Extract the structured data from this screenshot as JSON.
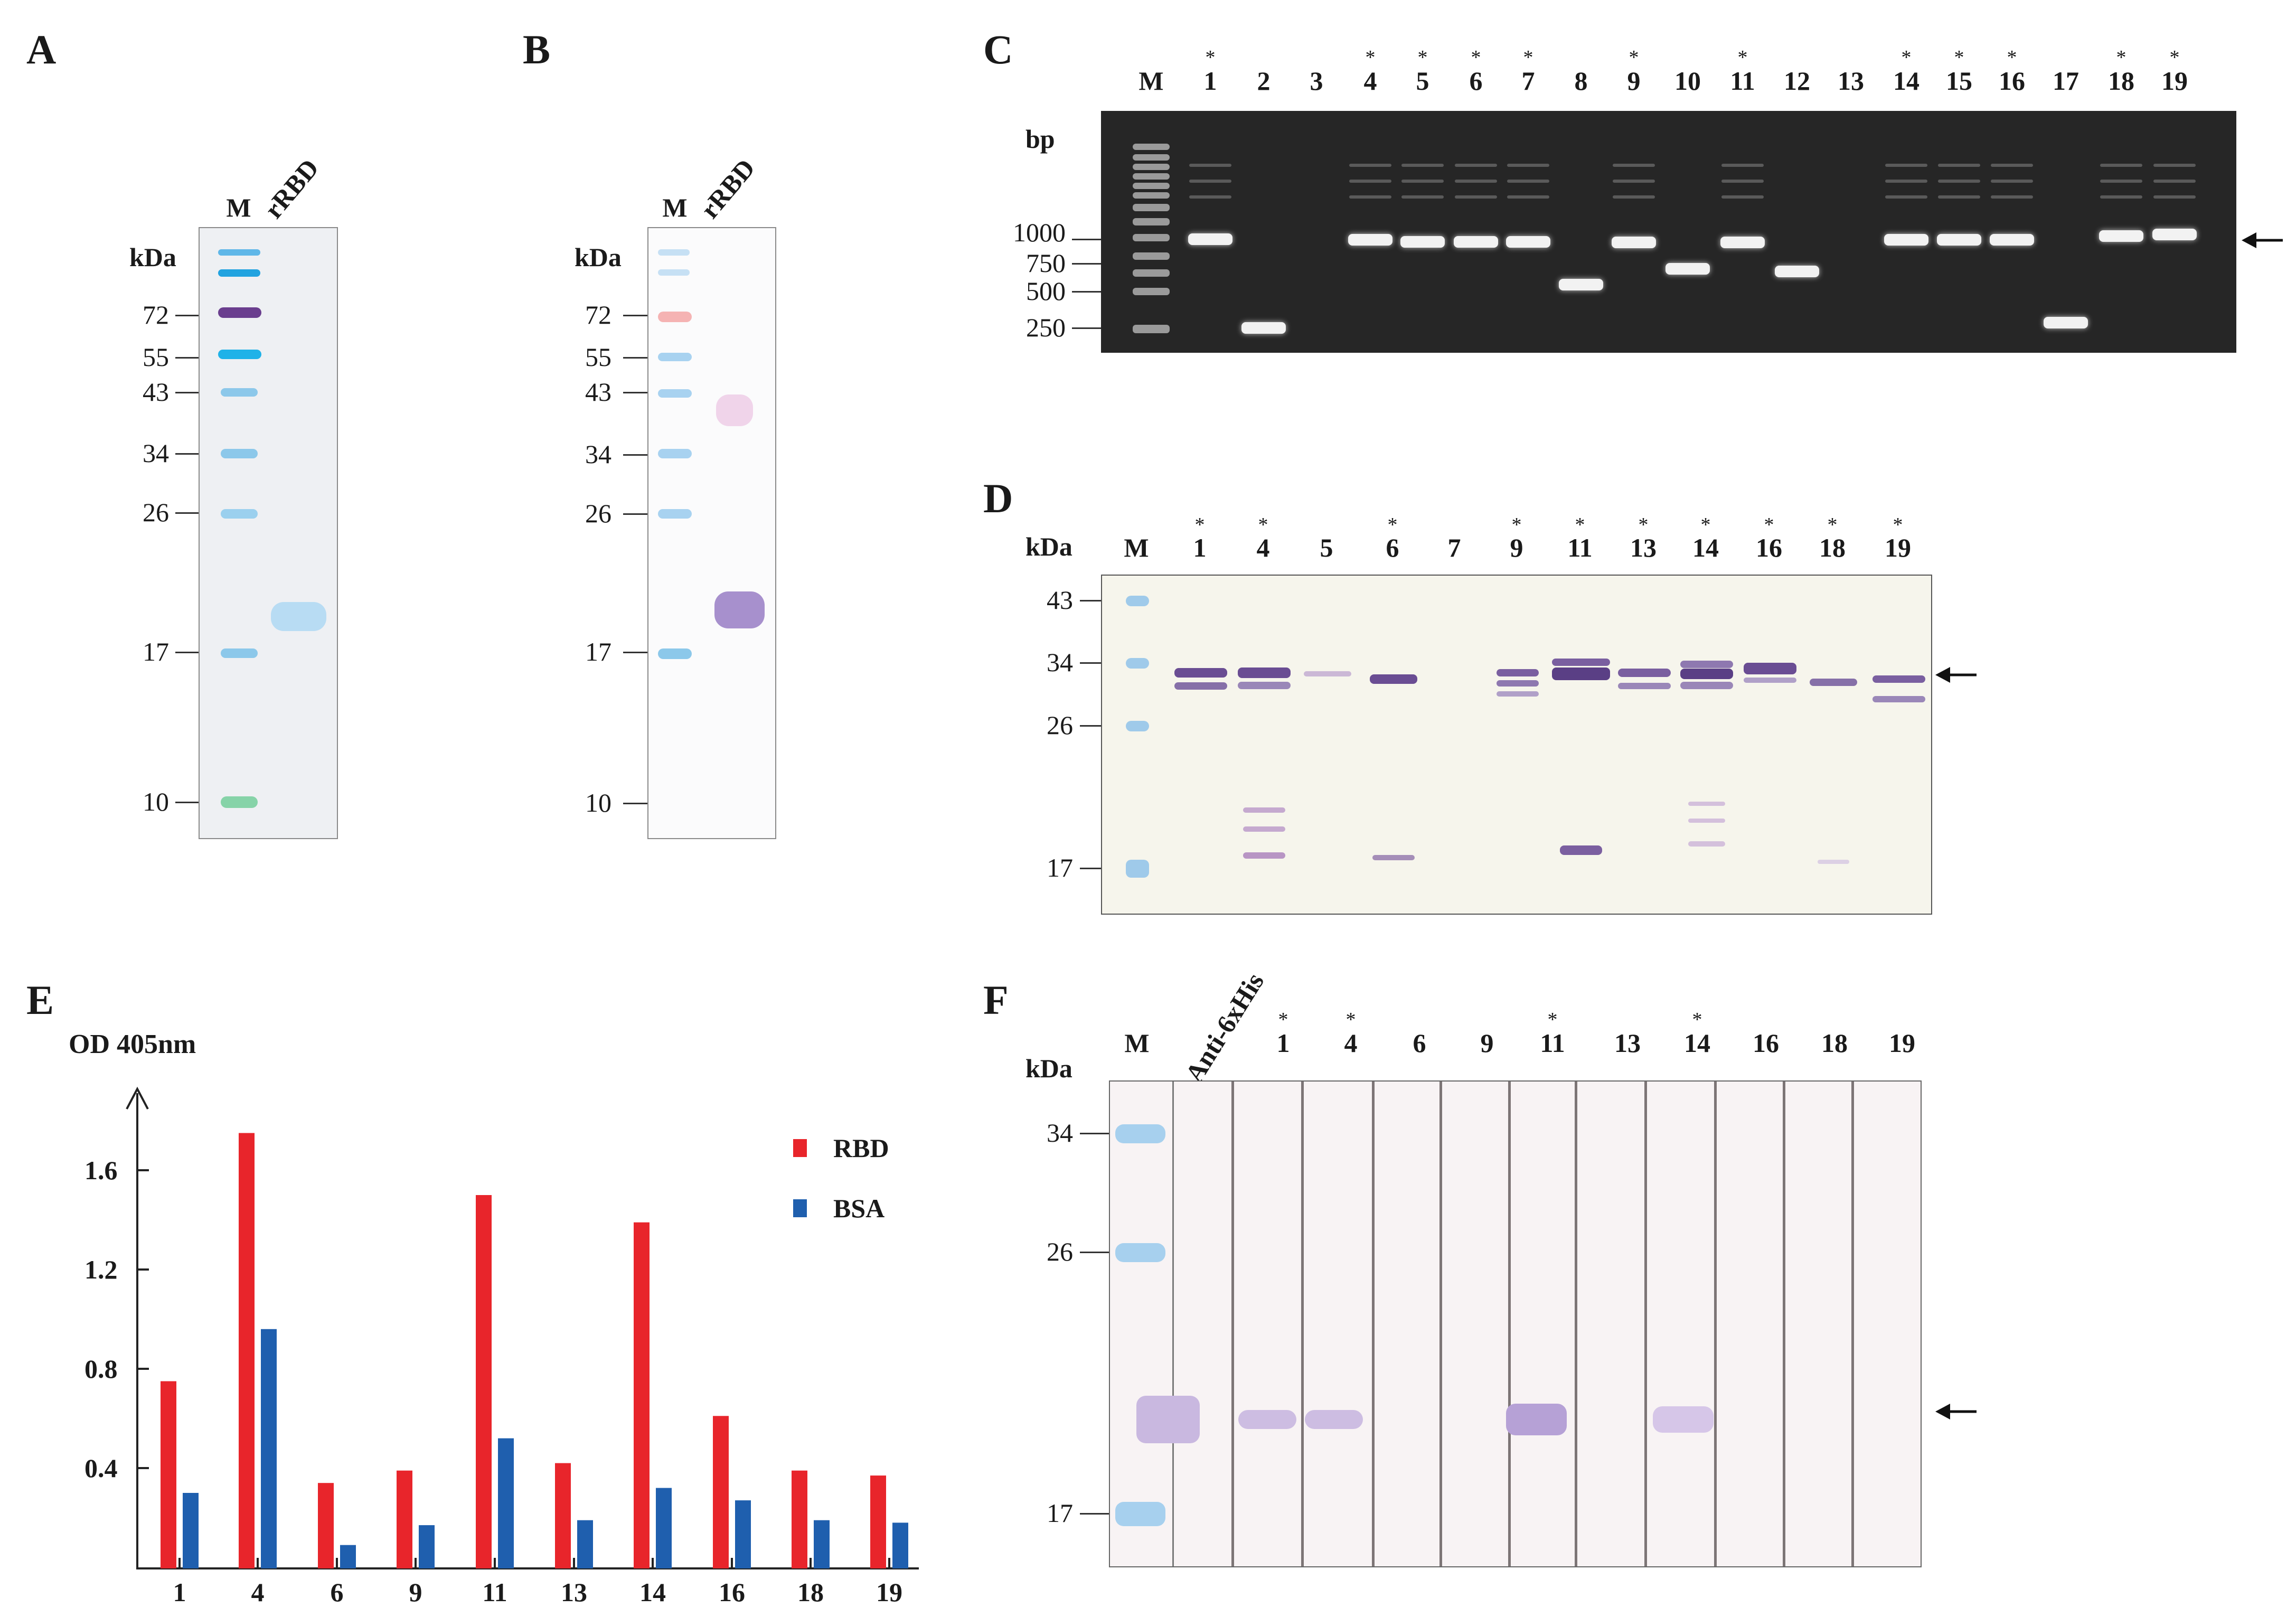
{
  "panels": {
    "A": {
      "label": "A",
      "kda_label": "kDa",
      "lanes": [
        "M",
        "rRBD"
      ],
      "markers": [
        "72",
        "55",
        "43",
        "34",
        "26",
        "17",
        "10"
      ]
    },
    "B": {
      "label": "B",
      "kda_label": "kDa",
      "lanes": [
        "M",
        "rRBD"
      ],
      "markers": [
        "72",
        "55",
        "43",
        "34",
        "26",
        "17",
        "10"
      ]
    },
    "C": {
      "label": "C",
      "bp_label": "bp",
      "lanes": [
        "M",
        "1",
        "2",
        "3",
        "4",
        "5",
        "6",
        "7",
        "8",
        "9",
        "10",
        "11",
        "12",
        "13",
        "14",
        "15",
        "16",
        "17",
        "18",
        "19"
      ],
      "starred_lanes": [
        "1",
        "4",
        "5",
        "6",
        "7",
        "9",
        "11",
        "14",
        "15",
        "16",
        "18",
        "19"
      ],
      "markers": [
        "1000",
        "750",
        "500",
        "250"
      ],
      "star_symbol": "*"
    },
    "D": {
      "label": "D",
      "kda_label": "kDa",
      "lanes": [
        "M",
        "1",
        "4",
        "5",
        "6",
        "7",
        "9",
        "11",
        "13",
        "14",
        "16",
        "18",
        "19"
      ],
      "starred_lanes": [
        "1",
        "4",
        "6",
        "9",
        "11",
        "13",
        "14",
        "16",
        "18",
        "19"
      ],
      "markers": [
        "43",
        "34",
        "26",
        "17"
      ],
      "star_symbol": "*"
    },
    "E": {
      "label": "E",
      "y_title": "OD 405nm",
      "legend": [
        "RBD",
        "BSA"
      ],
      "y_ticks": [
        "1.6",
        "1.2",
        "0.8",
        "0.4"
      ],
      "colors": {
        "RBD": "#e8252b",
        "BSA": "#1f5fae"
      }
    },
    "F": {
      "label": "F",
      "kda_label": "kDa",
      "lanes": [
        "M",
        "Anti-6xHis",
        "1",
        "4",
        "6",
        "9",
        "11",
        "13",
        "14",
        "16",
        "18",
        "19"
      ],
      "starred_lanes": [
        "1",
        "4",
        "11",
        "14"
      ],
      "markers": [
        "34",
        "26",
        "17"
      ],
      "star_symbol": "*"
    }
  },
  "chart_data": {
    "type": "bar",
    "categories": [
      "1",
      "4",
      "6",
      "9",
      "11",
      "13",
      "14",
      "16",
      "18",
      "19"
    ],
    "series": [
      {
        "name": "RBD",
        "values": [
          0.75,
          1.75,
          0.34,
          0.39,
          1.5,
          0.42,
          1.39,
          0.61,
          0.39,
          0.37
        ]
      },
      {
        "name": "BSA",
        "values": [
          0.3,
          0.96,
          0.09,
          0.17,
          0.52,
          0.19,
          0.32,
          0.27,
          0.19,
          0.18
        ]
      }
    ],
    "ylabel": "OD 405nm",
    "yticks": [
      0.4,
      0.8,
      1.2,
      1.6
    ],
    "ylim": [
      0,
      1.9
    ],
    "legend_position": "top-right",
    "grid": false
  }
}
